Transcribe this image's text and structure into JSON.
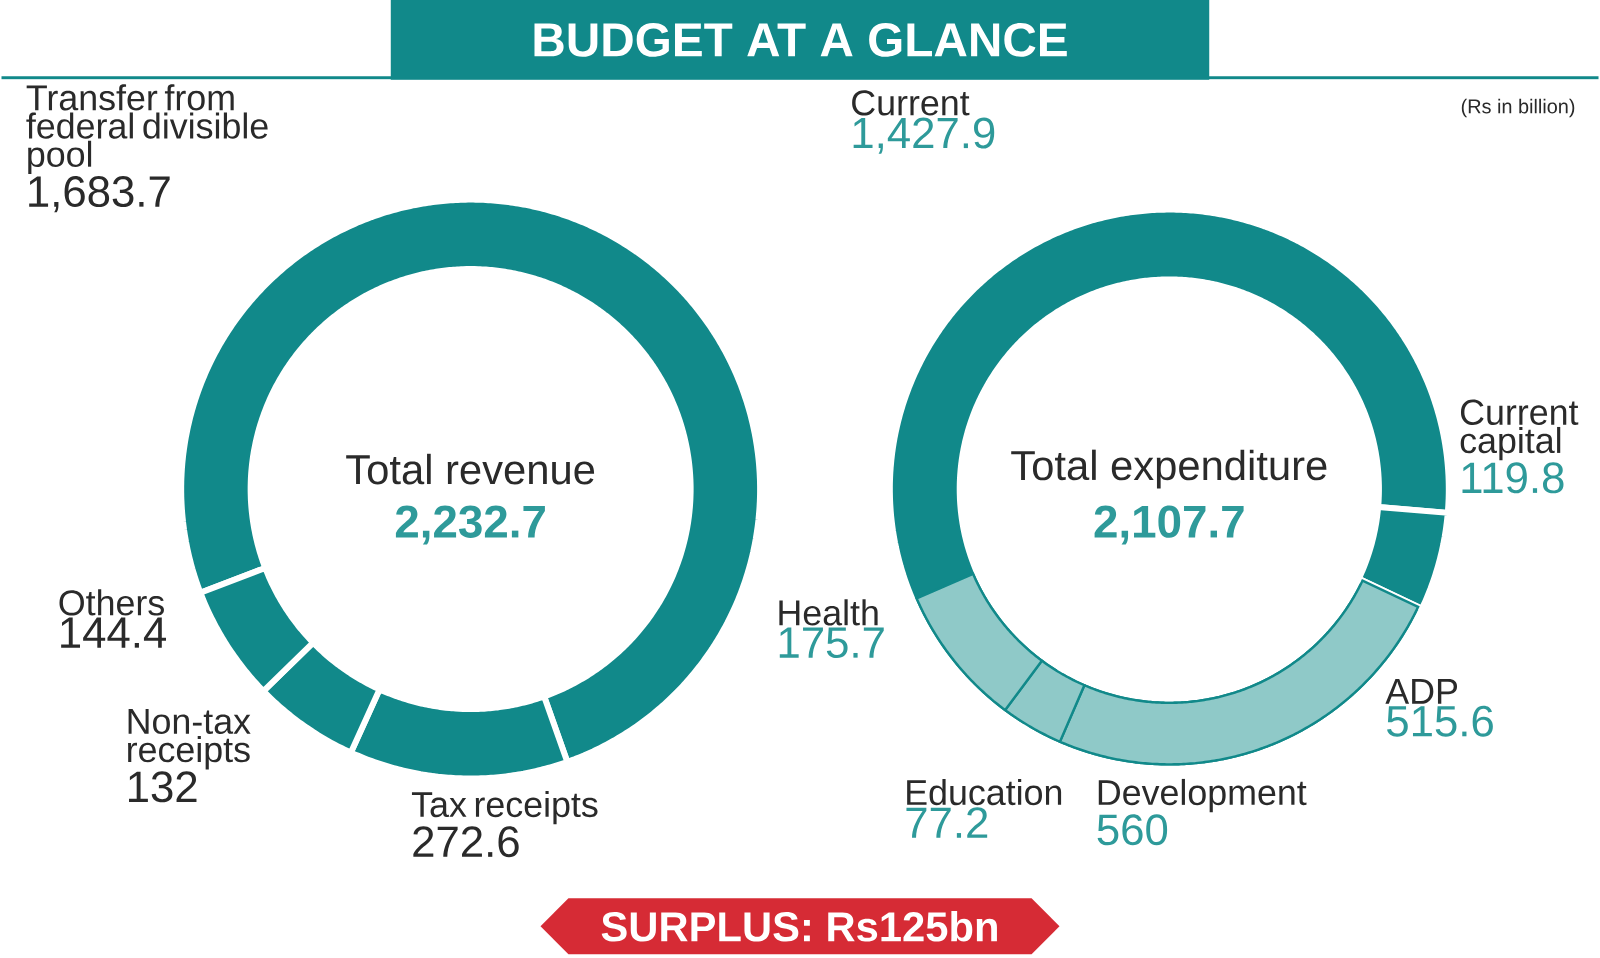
{
  "chart_data": [
    {
      "type": "donut",
      "title": "BUDGET AT A GLANCE",
      "subtitle": "Total revenue",
      "annotations": [
        "2,232.7",
        "SURPLUS: Rs125bn"
      ],
      "categories": [
        "Transfer from federal divisible pool",
        "Tax receipts",
        "Non-tax receipts",
        "Others"
      ],
      "values": [
        1683.7,
        272.6,
        132,
        144.4
      ],
      "value_labels": [
        "1,683.7",
        "272.6",
        "132",
        "144.4"
      ],
      "colors": [
        "#11898a",
        "#11898a",
        "#11898a",
        "#11898a"
      ]
    },
    {
      "type": "donut",
      "title": "Total expenditure",
      "annotations": [
        "2,107.7",
        "(Rs in billion)"
      ],
      "categories": [
        "Current",
        "Current capital",
        "Development"
      ],
      "values": [
        1427.9,
        119.8,
        560
      ],
      "value_labels": [
        "1,427.9",
        "119.8",
        "560"
      ],
      "colors": [
        "#11898a",
        "#11898a",
        "#11898a"
      ]
    },
    {
      "type": "donut",
      "categories": [
        "ADP",
        "Education",
        "Health"
      ],
      "values": [
        515.6,
        77.2,
        175.7
      ],
      "value_labels": [
        "515.6",
        "77.2",
        "175.7"
      ],
      "colors": [
        "#8fc9c8",
        "#8fc9c8",
        "#8fc9c8"
      ]
    }
  ]
}
